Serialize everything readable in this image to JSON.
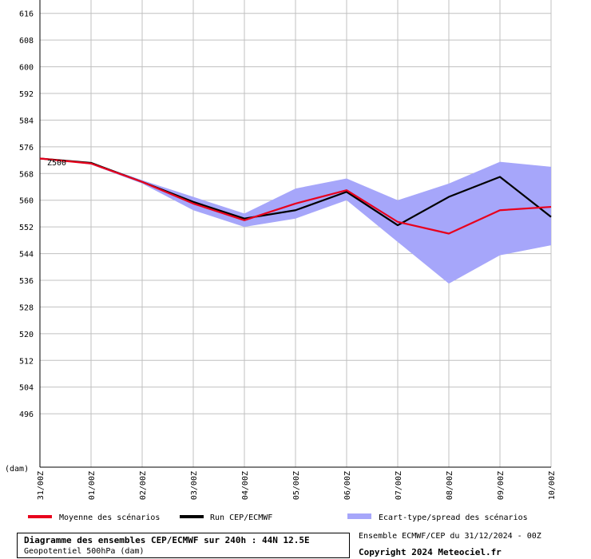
{
  "chart_data": {
    "type": "line",
    "x": [
      "31/00Z",
      "01/00Z",
      "02/00Z",
      "03/00Z",
      "04/00Z",
      "05/00Z",
      "06/00Z",
      "07/00Z",
      "08/00Z",
      "09/00Z",
      "10/00Z"
    ],
    "y_ticks": [
      "616",
      "608",
      "600",
      "592",
      "584",
      "576",
      "568",
      "560",
      "552",
      "544",
      "536",
      "528",
      "520",
      "512",
      "504",
      "496"
    ],
    "ylim": [
      480,
      620
    ],
    "y_unit_label": "(dam)",
    "annotation": "Z500",
    "grid": true,
    "series": [
      {
        "name": "Moyenne des scénarios",
        "color": "#e8001c",
        "values": [
          572.5,
          571.0,
          565.5,
          559.0,
          554.0,
          559.0,
          563.0,
          553.5,
          550.0,
          557.0,
          558.0
        ]
      },
      {
        "name": "Run CEP/ECMWF",
        "color": "#000000",
        "values": [
          572.5,
          571.2,
          565.5,
          559.5,
          554.5,
          557.0,
          562.5,
          552.5,
          561.0,
          567.0,
          555.0
        ]
      },
      {
        "name": "Ecart-type/spread des scénarios",
        "color": "#a6a6fa",
        "upper": [
          572.5,
          571.3,
          566.0,
          561.0,
          556.0,
          563.5,
          566.5,
          560.0,
          565.0,
          571.5,
          570.0
        ],
        "lower": [
          572.5,
          570.7,
          565.0,
          557.0,
          552.0,
          554.5,
          560.0,
          547.5,
          535.0,
          543.5,
          546.5
        ]
      }
    ]
  },
  "legend": {
    "mean_label": "Moyenne des scénarios",
    "run_label": "Run CEP/ECMWF",
    "spread_label": "Ecart-type/spread des scénarios"
  },
  "info": {
    "title": "Diagramme des ensembles CEP/ECMWF sur 240h : 44N 12.5E",
    "subtitle": "Geopotentiel 500hPa (dam)",
    "run": "Ensemble ECMWF/CEP du 31/12/2024 - 00Z",
    "copyright": "Copyright 2024 Meteociel.fr"
  }
}
